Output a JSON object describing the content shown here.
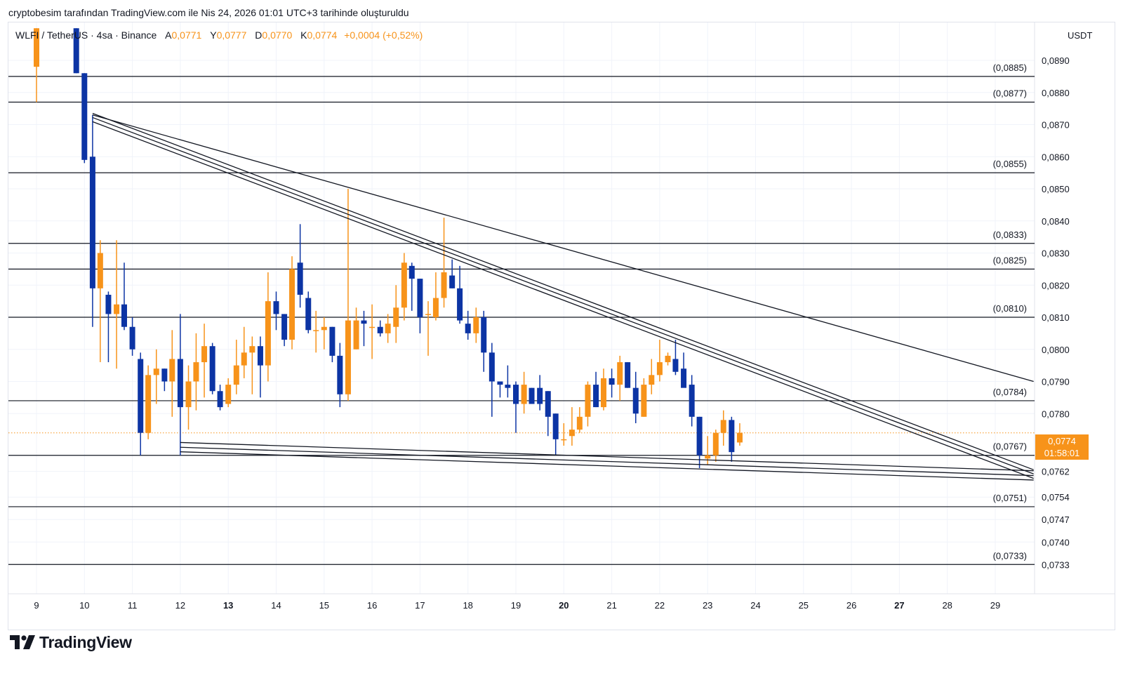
{
  "header": {
    "caption": "cryptobesim tarafından TradingView.com ile Nis 24, 2026 01:01 UTC+3 tarihinde oluşturuldu"
  },
  "legend": {
    "symbol": "WLFI / TetherUS · 4sa · Binance",
    "open_key": "A",
    "open_val": "0,0771",
    "high_key": "Y",
    "high_val": "0,0777",
    "low_key": "D",
    "low_val": "0,0770",
    "close_key": "K",
    "close_val": "0,0774",
    "change": "+0,0004 (+0,52%)"
  },
  "axis": {
    "currency": "USDT"
  },
  "last_price": {
    "value": "0,0774",
    "countdown": "01:58:01"
  },
  "brand": {
    "name": "TradingView"
  },
  "colors": {
    "up": "#f7931a",
    "down": "#0c34a4",
    "line": "#131722",
    "grid": "#f0f3fa"
  },
  "chart_data": {
    "type": "candlestick",
    "title": "WLFI / TetherUS · 4sa · Binance",
    "ylabel": "USDT",
    "ylim": [
      0.0731,
      0.0898
    ],
    "xlim": [
      8.4,
      30.3
    ],
    "y_ticks": [
      "0,0890",
      "0,0880",
      "0,0870",
      "0,0860",
      "0,0850",
      "0,0840",
      "0,0830",
      "0,0820",
      "0,0810",
      "0,0800",
      "0,0790",
      "0,0780",
      "0,0762",
      "0,0754",
      "0,0747",
      "0,0740",
      "0,0733"
    ],
    "y_tick_values": [
      0.089,
      0.088,
      0.087,
      0.086,
      0.085,
      0.084,
      0.083,
      0.082,
      0.081,
      0.08,
      0.079,
      0.078,
      0.0762,
      0.0754,
      0.0747,
      0.074,
      0.0733
    ],
    "x_ticks": [
      "9",
      "10",
      "11",
      "12",
      "13",
      "14",
      "15",
      "16",
      "17",
      "18",
      "19",
      "20",
      "21",
      "22",
      "23",
      "24",
      "25",
      "26",
      "27",
      "28",
      "29"
    ],
    "x_tick_values": [
      9,
      10,
      11,
      12,
      13,
      14,
      15,
      16,
      17,
      18,
      19,
      20,
      21,
      22,
      23,
      24,
      25,
      26,
      27,
      28,
      29
    ],
    "x_tick_bold": [
      "13",
      "20",
      "27"
    ],
    "levels": [
      {
        "value": 0.0885,
        "label": "(0,0885)"
      },
      {
        "value": 0.0877,
        "label": "(0,0877)"
      },
      {
        "value": 0.0855,
        "label": "(0,0855)"
      },
      {
        "value": 0.0833,
        "label": "(0,0833)"
      },
      {
        "value": 0.0825,
        "label": "(0,0825)"
      },
      {
        "value": 0.081,
        "label": "(0,0810)"
      },
      {
        "value": 0.0784,
        "label": "(0,0784)"
      },
      {
        "value": 0.0767,
        "label": "(0,0767)"
      },
      {
        "value": 0.0751,
        "label": "(0,0751)"
      },
      {
        "value": 0.0733,
        "label": "(0,0733)"
      }
    ],
    "current_price": 0.0774,
    "trendlines": [
      {
        "name": "outer-resistance",
        "x1": 10.17,
        "y1": 0.0873,
        "x2": 29.8,
        "y2": 0.079
      },
      {
        "name": "channel-upper-1",
        "x1": 10.17,
        "y1": 0.08735,
        "x2": 29.8,
        "y2": 0.07625
      },
      {
        "name": "channel-upper-2",
        "x1": 10.17,
        "y1": 0.08722,
        "x2": 29.8,
        "y2": 0.07612
      },
      {
        "name": "channel-upper-3",
        "x1": 10.17,
        "y1": 0.08709,
        "x2": 29.8,
        "y2": 0.07598
      },
      {
        "name": "channel-lower-1",
        "x1": 12.0,
        "y1": 0.0771,
        "x2": 29.8,
        "y2": 0.07622
      },
      {
        "name": "channel-lower-2",
        "x1": 12.0,
        "y1": 0.07695,
        "x2": 29.8,
        "y2": 0.07607
      },
      {
        "name": "channel-lower-3",
        "x1": 12.0,
        "y1": 0.07681,
        "x2": 29.8,
        "y2": 0.07593
      }
    ],
    "candles": [
      {
        "t": 9.0,
        "o": 0.0888,
        "h": 0.09,
        "l": 0.0877,
        "c": 0.09
      },
      {
        "t": 9.83,
        "o": 0.09,
        "h": 0.09,
        "l": 0.0886,
        "c": 0.0886
      },
      {
        "t": 10.0,
        "o": 0.0886,
        "h": 0.0886,
        "l": 0.0858,
        "c": 0.0859
      },
      {
        "t": 10.17,
        "o": 0.086,
        "h": 0.0873,
        "l": 0.0807,
        "c": 0.0819
      },
      {
        "t": 10.33,
        "o": 0.0819,
        "h": 0.0834,
        "l": 0.0796,
        "c": 0.083
      },
      {
        "t": 10.5,
        "o": 0.0817,
        "h": 0.0818,
        "l": 0.0796,
        "c": 0.0811
      },
      {
        "t": 10.67,
        "o": 0.0811,
        "h": 0.0834,
        "l": 0.0794,
        "c": 0.0814
      },
      {
        "t": 10.83,
        "o": 0.0814,
        "h": 0.0827,
        "l": 0.0806,
        "c": 0.0807
      },
      {
        "t": 11.0,
        "o": 0.0807,
        "h": 0.081,
        "l": 0.0798,
        "c": 0.08
      },
      {
        "t": 11.17,
        "o": 0.0797,
        "h": 0.0799,
        "l": 0.0767,
        "c": 0.0774
      },
      {
        "t": 11.33,
        "o": 0.0774,
        "h": 0.0795,
        "l": 0.0772,
        "c": 0.0792
      },
      {
        "t": 11.5,
        "o": 0.0792,
        "h": 0.08,
        "l": 0.0783,
        "c": 0.0794
      },
      {
        "t": 11.67,
        "o": 0.0794,
        "h": 0.0794,
        "l": 0.0787,
        "c": 0.079
      },
      {
        "t": 11.83,
        "o": 0.079,
        "h": 0.0806,
        "l": 0.0779,
        "c": 0.0797
      },
      {
        "t": 12.0,
        "o": 0.0797,
        "h": 0.0811,
        "l": 0.0767,
        "c": 0.0782
      },
      {
        "t": 12.17,
        "o": 0.0782,
        "h": 0.0795,
        "l": 0.0775,
        "c": 0.079
      },
      {
        "t": 12.33,
        "o": 0.079,
        "h": 0.0805,
        "l": 0.0781,
        "c": 0.0796
      },
      {
        "t": 12.5,
        "o": 0.0796,
        "h": 0.0808,
        "l": 0.0785,
        "c": 0.0801
      },
      {
        "t": 12.67,
        "o": 0.0801,
        "h": 0.0802,
        "l": 0.0786,
        "c": 0.0787
      },
      {
        "t": 12.83,
        "o": 0.0787,
        "h": 0.0789,
        "l": 0.0781,
        "c": 0.0782
      },
      {
        "t": 13.0,
        "o": 0.0783,
        "h": 0.0791,
        "l": 0.0782,
        "c": 0.0789
      },
      {
        "t": 13.17,
        "o": 0.0789,
        "h": 0.0803,
        "l": 0.0786,
        "c": 0.0795
      },
      {
        "t": 13.33,
        "o": 0.0795,
        "h": 0.0807,
        "l": 0.0791,
        "c": 0.0799
      },
      {
        "t": 13.5,
        "o": 0.0799,
        "h": 0.0804,
        "l": 0.0786,
        "c": 0.0801
      },
      {
        "t": 13.67,
        "o": 0.0801,
        "h": 0.0804,
        "l": 0.0785,
        "c": 0.0795
      },
      {
        "t": 13.83,
        "o": 0.0795,
        "h": 0.0824,
        "l": 0.079,
        "c": 0.0815
      },
      {
        "t": 14.0,
        "o": 0.0815,
        "h": 0.0818,
        "l": 0.0806,
        "c": 0.0811
      },
      {
        "t": 14.17,
        "o": 0.0811,
        "h": 0.0811,
        "l": 0.0801,
        "c": 0.0803
      },
      {
        "t": 14.33,
        "o": 0.0803,
        "h": 0.0829,
        "l": 0.08,
        "c": 0.0825
      },
      {
        "t": 14.5,
        "o": 0.0827,
        "h": 0.0839,
        "l": 0.0813,
        "c": 0.0817
      },
      {
        "t": 14.67,
        "o": 0.0816,
        "h": 0.0818,
        "l": 0.0805,
        "c": 0.0806
      },
      {
        "t": 14.83,
        "o": 0.0806,
        "h": 0.0812,
        "l": 0.0799,
        "c": 0.0806
      },
      {
        "t": 15.0,
        "o": 0.0806,
        "h": 0.081,
        "l": 0.08,
        "c": 0.0807
      },
      {
        "t": 15.17,
        "o": 0.0807,
        "h": 0.0807,
        "l": 0.0796,
        "c": 0.0798
      },
      {
        "t": 15.33,
        "o": 0.0798,
        "h": 0.0802,
        "l": 0.0782,
        "c": 0.0786
      },
      {
        "t": 15.5,
        "o": 0.0786,
        "h": 0.085,
        "l": 0.0784,
        "c": 0.0809
      },
      {
        "t": 15.67,
        "o": 0.08,
        "h": 0.0813,
        "l": 0.08,
        "c": 0.0809
      },
      {
        "t": 15.83,
        "o": 0.0809,
        "h": 0.0812,
        "l": 0.0801,
        "c": 0.0808
      },
      {
        "t": 16.0,
        "o": 0.0807,
        "h": 0.0814,
        "l": 0.0797,
        "c": 0.0807
      },
      {
        "t": 16.17,
        "o": 0.0807,
        "h": 0.0809,
        "l": 0.0804,
        "c": 0.0805
      },
      {
        "t": 16.33,
        "o": 0.0805,
        "h": 0.0811,
        "l": 0.0802,
        "c": 0.0808
      },
      {
        "t": 16.5,
        "o": 0.0807,
        "h": 0.082,
        "l": 0.0802,
        "c": 0.0813
      },
      {
        "t": 16.67,
        "o": 0.0813,
        "h": 0.083,
        "l": 0.0809,
        "c": 0.0827
      },
      {
        "t": 16.83,
        "o": 0.0826,
        "h": 0.0827,
        "l": 0.0812,
        "c": 0.0822
      },
      {
        "t": 17.0,
        "o": 0.0822,
        "h": 0.0822,
        "l": 0.0805,
        "c": 0.081
      },
      {
        "t": 17.17,
        "o": 0.0811,
        "h": 0.0815,
        "l": 0.0798,
        "c": 0.0811
      },
      {
        "t": 17.33,
        "o": 0.081,
        "h": 0.0824,
        "l": 0.0809,
        "c": 0.0816
      },
      {
        "t": 17.5,
        "o": 0.0816,
        "h": 0.0841,
        "l": 0.0813,
        "c": 0.0824
      },
      {
        "t": 17.67,
        "o": 0.0823,
        "h": 0.0828,
        "l": 0.0819,
        "c": 0.0819
      },
      {
        "t": 17.83,
        "o": 0.0819,
        "h": 0.0826,
        "l": 0.0808,
        "c": 0.0809
      },
      {
        "t": 18.0,
        "o": 0.0808,
        "h": 0.0812,
        "l": 0.0803,
        "c": 0.0805
      },
      {
        "t": 18.17,
        "o": 0.0805,
        "h": 0.0813,
        "l": 0.0802,
        "c": 0.081
      },
      {
        "t": 18.33,
        "o": 0.081,
        "h": 0.0812,
        "l": 0.0793,
        "c": 0.0799
      },
      {
        "t": 18.5,
        "o": 0.0799,
        "h": 0.0802,
        "l": 0.0779,
        "c": 0.079
      },
      {
        "t": 18.67,
        "o": 0.079,
        "h": 0.079,
        "l": 0.0785,
        "c": 0.0789
      },
      {
        "t": 18.83,
        "o": 0.0789,
        "h": 0.0795,
        "l": 0.0785,
        "c": 0.0788
      },
      {
        "t": 19.0,
        "o": 0.0789,
        "h": 0.079,
        "l": 0.0774,
        "c": 0.0783
      },
      {
        "t": 19.17,
        "o": 0.0783,
        "h": 0.0793,
        "l": 0.078,
        "c": 0.0789
      },
      {
        "t": 19.33,
        "o": 0.0788,
        "h": 0.0788,
        "l": 0.0784,
        "c": 0.0783
      },
      {
        "t": 19.5,
        "o": 0.0788,
        "h": 0.0792,
        "l": 0.0781,
        "c": 0.0783
      },
      {
        "t": 19.67,
        "o": 0.0787,
        "h": 0.0787,
        "l": 0.0773,
        "c": 0.0779
      },
      {
        "t": 19.83,
        "o": 0.078,
        "h": 0.078,
        "l": 0.0767,
        "c": 0.0772
      },
      {
        "t": 20.0,
        "o": 0.0772,
        "h": 0.0777,
        "l": 0.077,
        "c": 0.0772
      },
      {
        "t": 20.17,
        "o": 0.0773,
        "h": 0.0782,
        "l": 0.077,
        "c": 0.0775
      },
      {
        "t": 20.33,
        "o": 0.0775,
        "h": 0.0782,
        "l": 0.0774,
        "c": 0.0779
      },
      {
        "t": 20.5,
        "o": 0.0779,
        "h": 0.079,
        "l": 0.0776,
        "c": 0.0789
      },
      {
        "t": 20.67,
        "o": 0.0789,
        "h": 0.0793,
        "l": 0.0782,
        "c": 0.0782
      },
      {
        "t": 20.83,
        "o": 0.0782,
        "h": 0.0794,
        "l": 0.0781,
        "c": 0.0791
      },
      {
        "t": 21.0,
        "o": 0.0791,
        "h": 0.0794,
        "l": 0.0785,
        "c": 0.0789
      },
      {
        "t": 21.17,
        "o": 0.0789,
        "h": 0.0798,
        "l": 0.0784,
        "c": 0.0796
      },
      {
        "t": 21.33,
        "o": 0.0796,
        "h": 0.0796,
        "l": 0.0788,
        "c": 0.0788
      },
      {
        "t": 21.5,
        "o": 0.0788,
        "h": 0.0793,
        "l": 0.0777,
        "c": 0.078
      },
      {
        "t": 21.67,
        "o": 0.0779,
        "h": 0.0791,
        "l": 0.0779,
        "c": 0.0789
      },
      {
        "t": 21.83,
        "o": 0.0789,
        "h": 0.0797,
        "l": 0.0786,
        "c": 0.0792
      },
      {
        "t": 22.0,
        "o": 0.0792,
        "h": 0.0803,
        "l": 0.079,
        "c": 0.0796
      },
      {
        "t": 22.17,
        "o": 0.0796,
        "h": 0.0799,
        "l": 0.0795,
        "c": 0.0798
      },
      {
        "t": 22.33,
        "o": 0.0797,
        "h": 0.0803,
        "l": 0.0792,
        "c": 0.0793
      },
      {
        "t": 22.5,
        "o": 0.0794,
        "h": 0.0799,
        "l": 0.0789,
        "c": 0.0788
      },
      {
        "t": 22.67,
        "o": 0.0789,
        "h": 0.0792,
        "l": 0.0776,
        "c": 0.0779
      },
      {
        "t": 22.83,
        "o": 0.0779,
        "h": 0.0779,
        "l": 0.0763,
        "c": 0.0767
      },
      {
        "t": 23.0,
        "o": 0.0766,
        "h": 0.0773,
        "l": 0.0764,
        "c": 0.0767
      },
      {
        "t": 23.17,
        "o": 0.0767,
        "h": 0.0775,
        "l": 0.0765,
        "c": 0.0774
      },
      {
        "t": 23.33,
        "o": 0.0774,
        "h": 0.0781,
        "l": 0.077,
        "c": 0.0778
      },
      {
        "t": 23.5,
        "o": 0.0778,
        "h": 0.0779,
        "l": 0.0765,
        "c": 0.0768
      },
      {
        "t": 23.67,
        "o": 0.0771,
        "h": 0.0777,
        "l": 0.077,
        "c": 0.0774
      }
    ]
  }
}
